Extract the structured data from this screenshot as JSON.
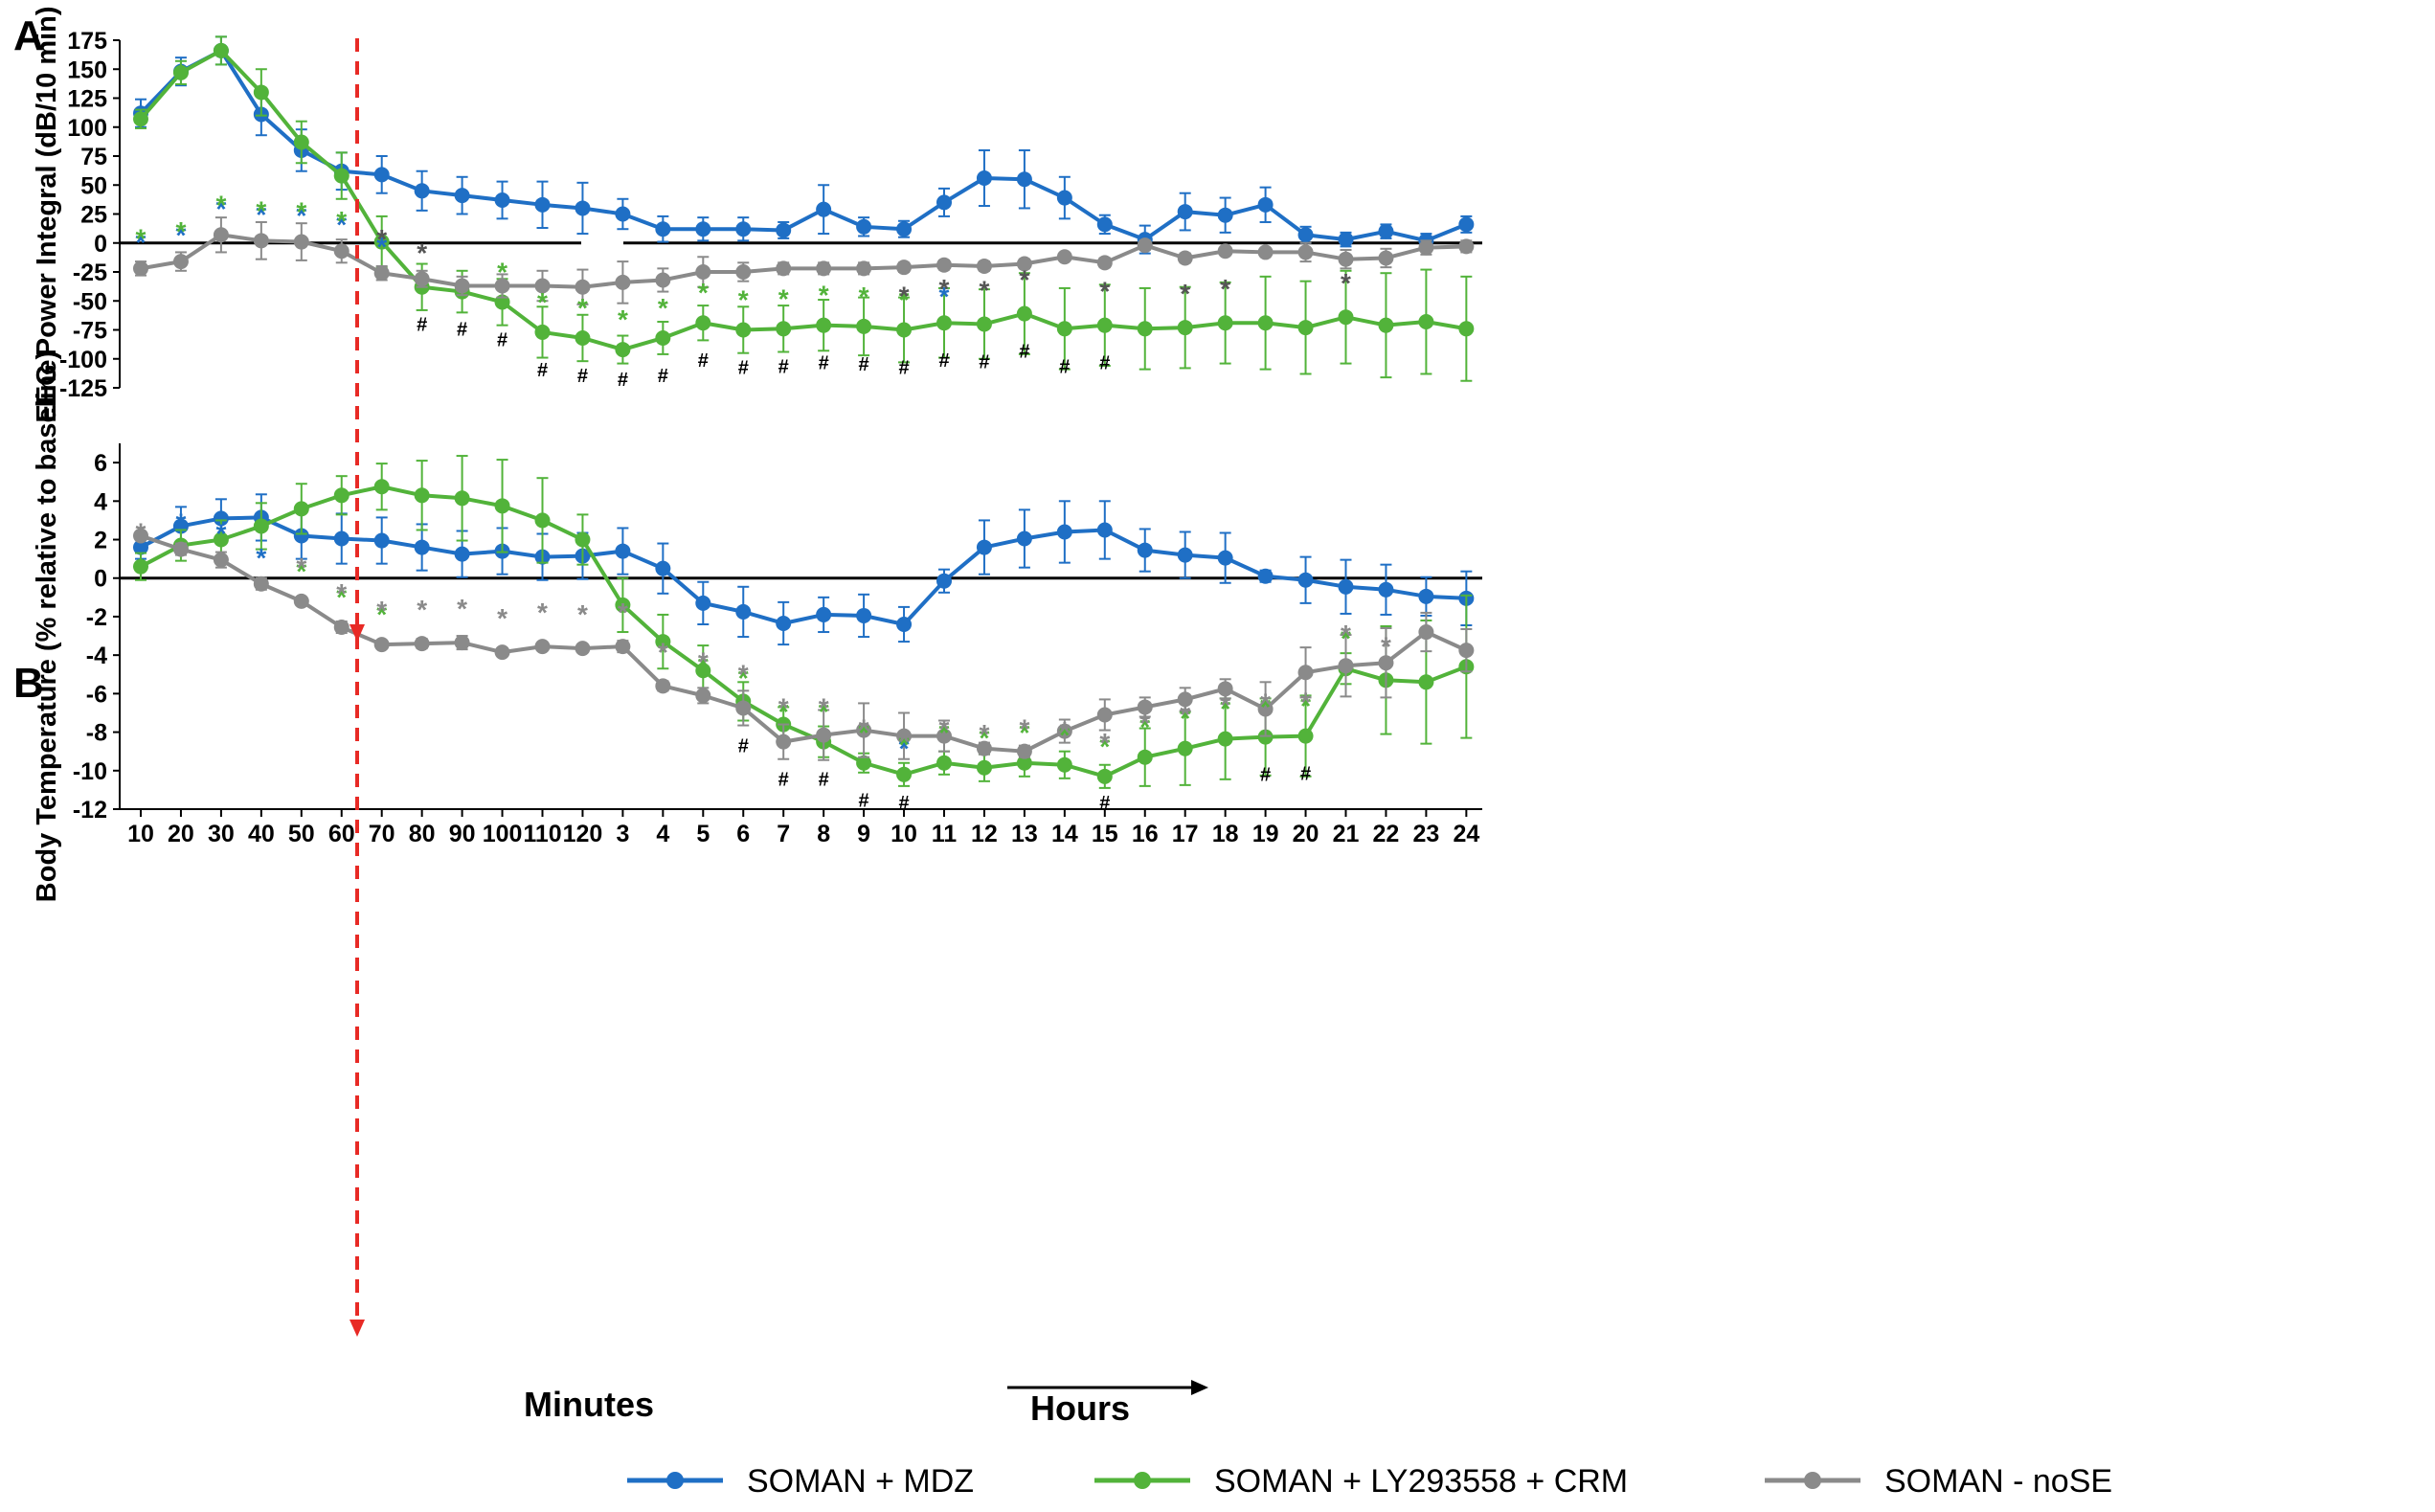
{
  "figure": {
    "panel_a_label": "A",
    "panel_b_label": "B",
    "x_group_minutes": "Minutes",
    "x_group_hours": "Hours"
  },
  "legend": [
    {
      "label": "SOMAN + MDZ",
      "color": "#1f6fc5"
    },
    {
      "label": "SOMAN + LY293558 + CRM",
      "color": "#52b33a"
    },
    {
      "label": "SOMAN - noSE",
      "color": "#8a8a8a"
    }
  ],
  "chart_data": [
    {
      "panel": "A",
      "type": "line",
      "ylabel": "EEG Power Integral (dB/10 min)",
      "ylim": [
        -125,
        175
      ],
      "yticks": [
        175,
        150,
        125,
        100,
        75,
        50,
        25,
        0,
        -25,
        -50,
        -75,
        -100,
        -125
      ],
      "categories": [
        "10",
        "20",
        "30",
        "40",
        "50",
        "60",
        "70",
        "80",
        "90",
        "100",
        "110",
        "120",
        "3",
        "4",
        "5",
        "6",
        "7",
        "8",
        "9",
        "10",
        "11",
        "12",
        "13",
        "14",
        "15",
        "16",
        "17",
        "18",
        "19",
        "20",
        "21",
        "22",
        "23",
        "24"
      ],
      "series": [
        {
          "name": "SOMAN + MDZ",
          "color": "#1f6fc5",
          "values": [
            112,
            148,
            166,
            111,
            80,
            62,
            59,
            45,
            41,
            37,
            33,
            30,
            25,
            12,
            12,
            12,
            11,
            29,
            14,
            12,
            35,
            56,
            55,
            39,
            16,
            3,
            27,
            24,
            33,
            7,
            3,
            10,
            2,
            16
          ],
          "errors": [
            12,
            12,
            12,
            18,
            18,
            16,
            16,
            17,
            16,
            16,
            20,
            22,
            13,
            11,
            10,
            10,
            7,
            21,
            8,
            7,
            12,
            24,
            25,
            18,
            8,
            12,
            16,
            15,
            15,
            7,
            6,
            6,
            6,
            7
          ]
        },
        {
          "name": "SOMAN + LY293558 + CRM",
          "color": "#52b33a",
          "values": [
            107,
            147,
            166,
            130,
            87,
            58,
            1,
            -38,
            -42,
            -51,
            -77,
            -82,
            -92,
            -82,
            -69,
            -75,
            -74,
            -71,
            -72,
            -75,
            -69,
            -70,
            -61,
            -74,
            -71,
            -74,
            -73,
            -69,
            -69,
            -73,
            -64,
            -71,
            -68,
            -74
          ],
          "errors": [
            8,
            10,
            12,
            20,
            18,
            20,
            22,
            20,
            18,
            20,
            22,
            20,
            12,
            14,
            15,
            20,
            20,
            22,
            25,
            28,
            30,
            30,
            35,
            35,
            35,
            35,
            35,
            35,
            40,
            40,
            40,
            45,
            45,
            45
          ]
        },
        {
          "name": "SOMAN - noSE",
          "color": "#8a8a8a",
          "values": [
            -22,
            -16,
            7,
            2,
            1,
            -7,
            -26,
            -31,
            -37,
            -37,
            -37,
            -38,
            -34,
            -32,
            -25,
            -25,
            -22,
            -22,
            -22,
            -21,
            -19,
            -20,
            -18,
            -12,
            -17,
            -2,
            -13,
            -7,
            -8,
            -8,
            -14,
            -13,
            -4,
            -3
          ],
          "errors": [
            6,
            8,
            15,
            16,
            16,
            10,
            6,
            7,
            8,
            10,
            13,
            15,
            18,
            10,
            13,
            8,
            5,
            5,
            5,
            4,
            4,
            4,
            4,
            3,
            4,
            4,
            4,
            3,
            3,
            8,
            8,
            8,
            6,
            5
          ]
        }
      ],
      "significance": [
        {
          "symbol": "*",
          "color": "#1f6fc5",
          "points": [
            0,
            1,
            2,
            3,
            4,
            5,
            6,
            20
          ]
        },
        {
          "symbol": "*",
          "color": "#52b33a",
          "points": [
            0,
            1,
            2,
            3,
            4,
            5,
            9,
            10,
            11,
            12,
            13,
            14,
            15,
            16,
            17,
            18,
            19
          ]
        },
        {
          "symbol": "*",
          "color": "#555555",
          "points": [
            6,
            7,
            19,
            20,
            21,
            22,
            24,
            26,
            27,
            30
          ]
        },
        {
          "symbol": "#",
          "color": "#000000",
          "points": [
            7,
            8,
            9,
            10,
            11,
            12,
            13,
            14,
            15,
            16,
            17,
            18,
            19,
            20,
            21,
            22,
            23,
            24
          ]
        }
      ]
    },
    {
      "panel": "B",
      "type": "line",
      "ylabel": "Body Temperature (% relative to baseline)",
      "ylim": [
        -12,
        7
      ],
      "yticks": [
        6,
        4,
        2,
        0,
        -2,
        -4,
        -6,
        -8,
        -10,
        -12
      ],
      "categories": [
        "10",
        "20",
        "30",
        "40",
        "50",
        "60",
        "70",
        "80",
        "90",
        "100",
        "110",
        "120",
        "3",
        "4",
        "5",
        "6",
        "7",
        "8",
        "9",
        "10",
        "11",
        "12",
        "13",
        "14",
        "15",
        "16",
        "17",
        "18",
        "19",
        "20",
        "21",
        "22",
        "23",
        "24"
      ],
      "series": [
        {
          "name": "SOMAN + MDZ",
          "color": "#1f6fc5",
          "values": [
            1.6,
            2.7,
            3.1,
            3.15,
            2.2,
            2.05,
            1.95,
            1.6,
            1.25,
            1.4,
            1.1,
            1.15,
            1.4,
            0.5,
            -1.3,
            -1.75,
            -2.35,
            -1.9,
            -1.95,
            -2.4,
            -0.15,
            1.6,
            2.05,
            2.4,
            2.5,
            1.45,
            1.2,
            1.05,
            0.1,
            -0.1,
            -0.45,
            -0.6,
            -0.95,
            -1.05
          ],
          "errors": [
            0.6,
            1.0,
            1.0,
            1.2,
            1.2,
            1.3,
            1.2,
            1.2,
            1.2,
            1.2,
            1.2,
            1.2,
            1.2,
            1.3,
            1.1,
            1.3,
            1.1,
            0.9,
            1.1,
            0.9,
            0.6,
            1.4,
            1.5,
            1.6,
            1.5,
            1.1,
            1.2,
            1.3,
            0.3,
            1.2,
            1.4,
            1.3,
            1.0,
            1.4
          ]
        },
        {
          "name": "SOMAN + LY293558 + CRM",
          "color": "#52b33a",
          "values": [
            0.6,
            1.7,
            2.0,
            2.7,
            3.6,
            4.3,
            4.75,
            4.3,
            4.15,
            3.75,
            3.0,
            2.0,
            -1.4,
            -3.3,
            -4.8,
            -6.4,
            -7.6,
            -8.5,
            -9.6,
            -10.2,
            -9.6,
            -9.85,
            -9.6,
            -9.7,
            -10.3,
            -9.3,
            -8.85,
            -8.35,
            -8.25,
            -8.2,
            -4.7,
            -5.3,
            -5.4,
            -4.6
          ],
          "errors": [
            0.7,
            0.8,
            1.0,
            1.2,
            1.3,
            1.0,
            1.2,
            1.8,
            2.2,
            2.4,
            2.2,
            1.3,
            1.4,
            1.4,
            1.3,
            1.0,
            0.9,
            0.8,
            0.5,
            0.6,
            0.6,
            0.7,
            0.7,
            0.7,
            0.6,
            1.5,
            1.9,
            2.1,
            2.0,
            2.1,
            0.8,
            2.8,
            3.2,
            3.7
          ]
        },
        {
          "name": "SOMAN - noSE",
          "color": "#8a8a8a",
          "values": [
            2.2,
            1.5,
            0.95,
            -0.3,
            -1.2,
            -2.55,
            -3.45,
            -3.4,
            -3.35,
            -3.85,
            -3.55,
            -3.65,
            -3.55,
            -5.6,
            -6.1,
            -6.75,
            -8.5,
            -8.15,
            -7.9,
            -8.2,
            -8.2,
            -8.85,
            -9.0,
            -7.95,
            -7.1,
            -6.7,
            -6.3,
            -5.75,
            -6.8,
            -4.9,
            -4.55,
            -4.4,
            -2.8,
            -3.75
          ]
        },
        {
          "name": "_errors_noSE",
          "color": "#8a8a8a",
          "values": [
            0.2,
            0.3,
            0.4,
            0.3,
            0.2,
            0.3,
            0.15,
            0.25,
            0.35,
            0.2,
            0.2,
            0.2,
            0.3,
            0.25,
            0.4,
            0.9,
            0.9,
            1.3,
            1.4,
            1.2,
            0.8,
            0.3,
            0.3,
            0.6,
            0.8,
            0.5,
            0.6,
            0.5,
            1.4,
            1.3,
            1.6,
            1.8,
            1.0,
            1.1
          ]
        }
      ],
      "significance": [
        {
          "symbol": "*",
          "color": "#1f6fc5",
          "points": [
            1,
            2,
            3,
            19
          ]
        },
        {
          "symbol": "*",
          "color": "#52b33a",
          "points": [
            4,
            5,
            6,
            14,
            15,
            16,
            17,
            18,
            19,
            20,
            21,
            22,
            23,
            24,
            25,
            26,
            27,
            28,
            29,
            30
          ]
        },
        {
          "symbol": "*",
          "color": "#8a8a8a",
          "points": [
            0,
            4,
            5,
            6,
            7,
            8,
            9,
            10,
            11,
            12,
            13,
            14,
            15,
            16,
            17,
            18,
            19,
            20,
            21,
            22,
            23,
            24,
            25,
            26,
            27,
            28,
            29,
            30,
            31
          ]
        },
        {
          "symbol": "#",
          "color": "#000000",
          "points": [
            15,
            16,
            17,
            18,
            19,
            24,
            28,
            29
          ]
        }
      ]
    }
  ]
}
